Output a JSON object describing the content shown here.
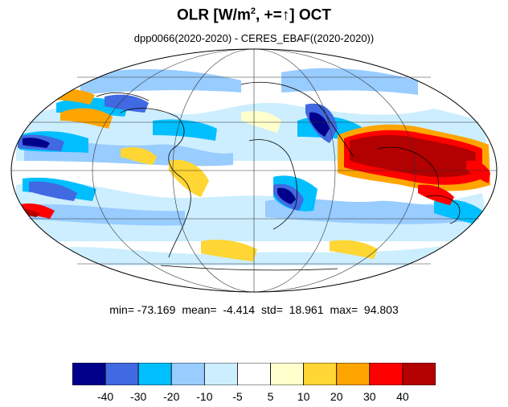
{
  "title": {
    "main": "OLR [W/m",
    "sup": "2",
    "tail": ", +=↑] OCT"
  },
  "subtitle": "dpp0066(2020-2020) - CERES_EBAF((2020-2020))",
  "stats": {
    "min": "min= -73.169",
    "mean": "mean=  -4.414",
    "std": "std=  18.961",
    "max": "max=  94.803"
  },
  "colorbar": {
    "colors": [
      "#00008b",
      "#4169e1",
      "#00bfff",
      "#99ccff",
      "#cceeff",
      "#ffffff",
      "#ffffcc",
      "#ffd633",
      "#ffa500",
      "#ff0000",
      "#b30000"
    ],
    "labels": [
      "-40",
      "-30",
      "-20",
      "-10",
      "-5",
      "5",
      "10",
      "20",
      "30",
      "40"
    ]
  },
  "map": {
    "projection": "Mollweide",
    "background_color": "#ffffff"
  }
}
